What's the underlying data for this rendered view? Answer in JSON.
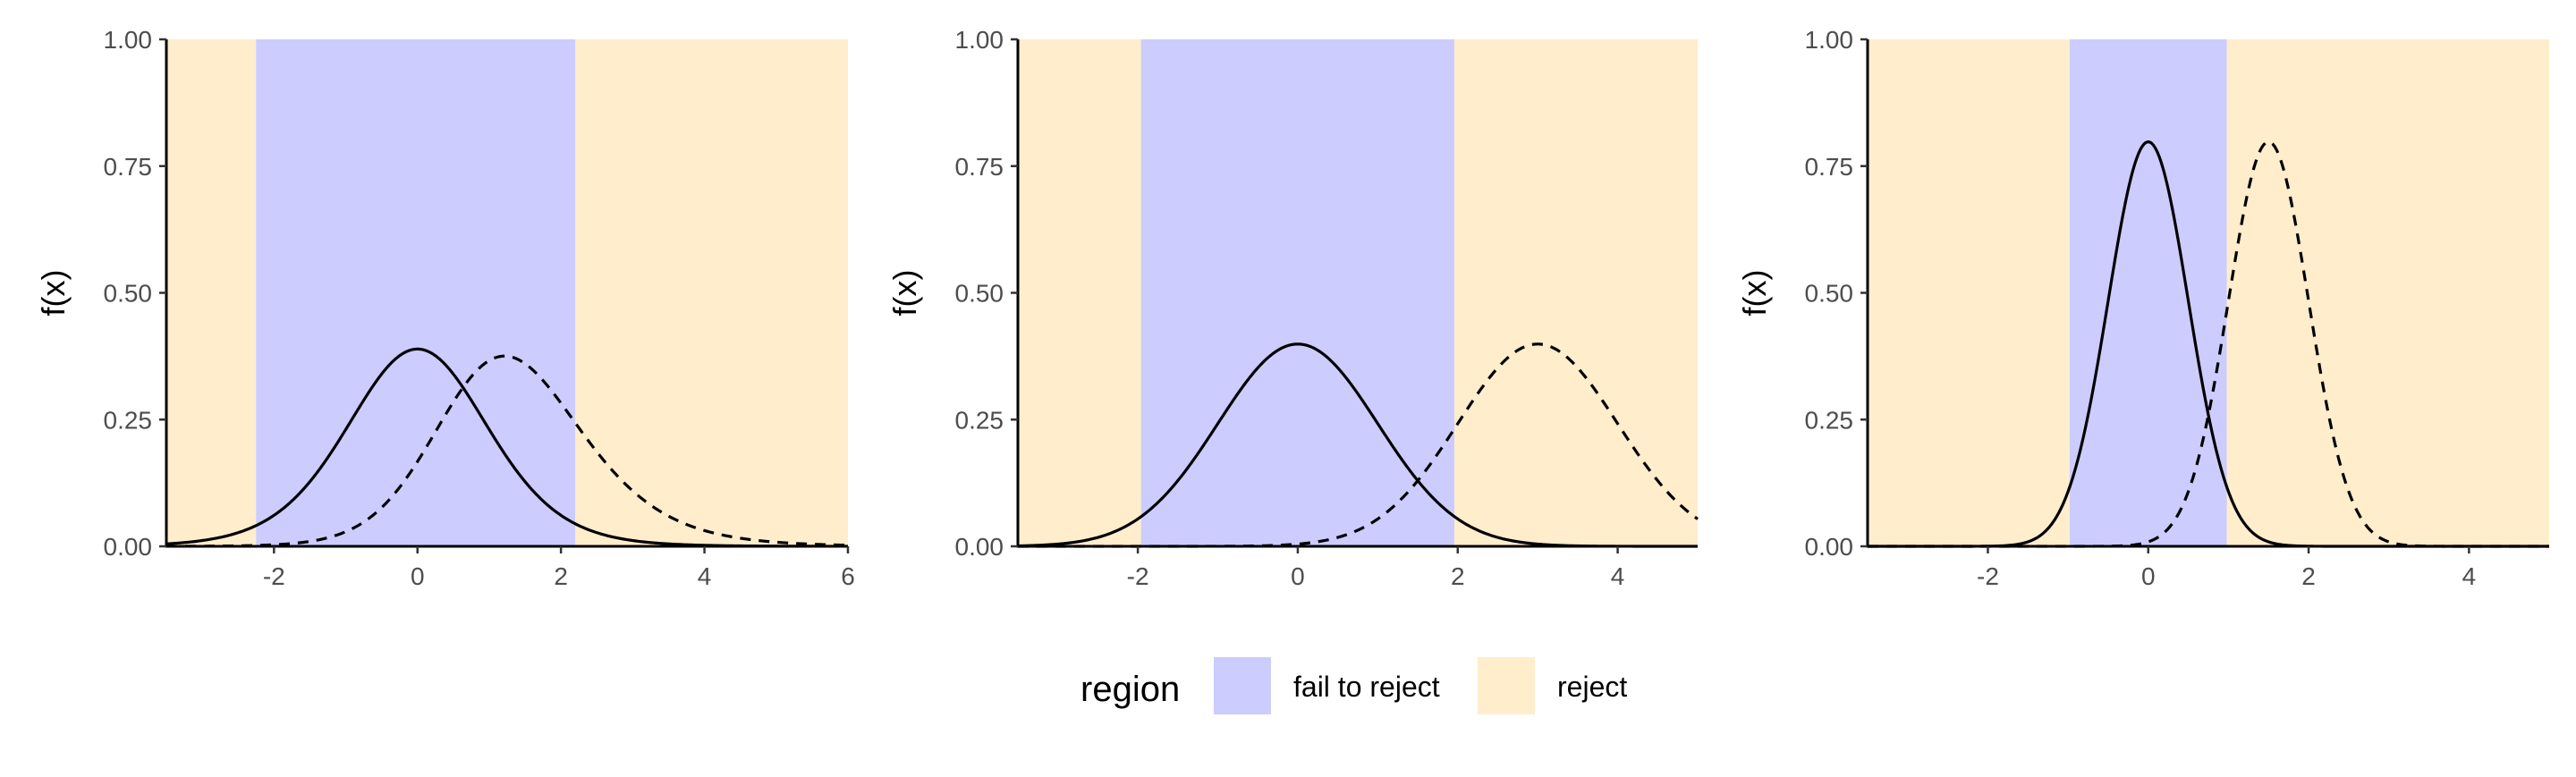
{
  "legend": {
    "title": "region",
    "items": [
      {
        "label": "fail to reject",
        "color": "#ccccff"
      },
      {
        "label": "reject",
        "color": "#ffedcc"
      }
    ]
  },
  "chart_data": [
    {
      "type": "line",
      "ylabel": "f(x)",
      "xlim": [
        -3.5,
        6
      ],
      "ylim": [
        0,
        1
      ],
      "x_ticks": [
        -2,
        0,
        2,
        4,
        6
      ],
      "x_tick_labels": [
        "-2",
        "0",
        "2",
        "4",
        "6"
      ],
      "y_ticks": [
        0,
        0.25,
        0.5,
        0.75,
        1
      ],
      "y_tick_labels": [
        "0.00",
        "0.25",
        "0.50",
        "0.75",
        "1.00"
      ],
      "regions": [
        {
          "region": "reject",
          "from": -3.5,
          "to": -2.25
        },
        {
          "region": "fail to reject",
          "from": -2.25,
          "to": 2.2
        },
        {
          "region": "reject",
          "from": 2.2,
          "to": 6
        }
      ],
      "series": [
        {
          "linestyle": "solid",
          "distribution": "t",
          "location": 0,
          "df": 10
        },
        {
          "linestyle": "dashed",
          "distribution": "noncentral-t",
          "ncp": 1.3,
          "df": 10
        }
      ]
    },
    {
      "type": "line",
      "ylabel": "f(x)",
      "xlim": [
        -3.5,
        5
      ],
      "ylim": [
        0,
        1
      ],
      "x_ticks": [
        -2,
        0,
        2,
        4
      ],
      "x_tick_labels": [
        "-2",
        "0",
        "2",
        "4"
      ],
      "y_ticks": [
        0,
        0.25,
        0.5,
        0.75,
        1
      ],
      "y_tick_labels": [
        "0.00",
        "0.25",
        "0.50",
        "0.75",
        "1.00"
      ],
      "regions": [
        {
          "region": "reject",
          "from": -3.5,
          "to": -1.96
        },
        {
          "region": "fail to reject",
          "from": -1.96,
          "to": 1.96
        },
        {
          "region": "reject",
          "from": 1.96,
          "to": 5
        }
      ],
      "series": [
        {
          "linestyle": "solid",
          "distribution": "normal",
          "mean": 0,
          "sd": 1
        },
        {
          "linestyle": "dashed",
          "distribution": "normal",
          "mean": 3,
          "sd": 1
        }
      ]
    },
    {
      "type": "line",
      "ylabel": "f(x)",
      "xlim": [
        -3.5,
        5
      ],
      "ylim": [
        0,
        1
      ],
      "x_ticks": [
        -2,
        0,
        2,
        4
      ],
      "x_tick_labels": [
        "-2",
        "0",
        "2",
        "4"
      ],
      "y_ticks": [
        0,
        0.25,
        0.5,
        0.75,
        1
      ],
      "y_tick_labels": [
        "0.00",
        "0.25",
        "0.50",
        "0.75",
        "1.00"
      ],
      "regions": [
        {
          "region": "reject",
          "from": -3.5,
          "to": -0.98
        },
        {
          "region": "fail to reject",
          "from": -0.98,
          "to": 0.98
        },
        {
          "region": "reject",
          "from": 0.98,
          "to": 5
        }
      ],
      "series": [
        {
          "linestyle": "solid",
          "distribution": "normal",
          "mean": 0,
          "sd": 0.5
        },
        {
          "linestyle": "dashed",
          "distribution": "normal",
          "mean": 1.5,
          "sd": 0.5
        }
      ]
    }
  ]
}
